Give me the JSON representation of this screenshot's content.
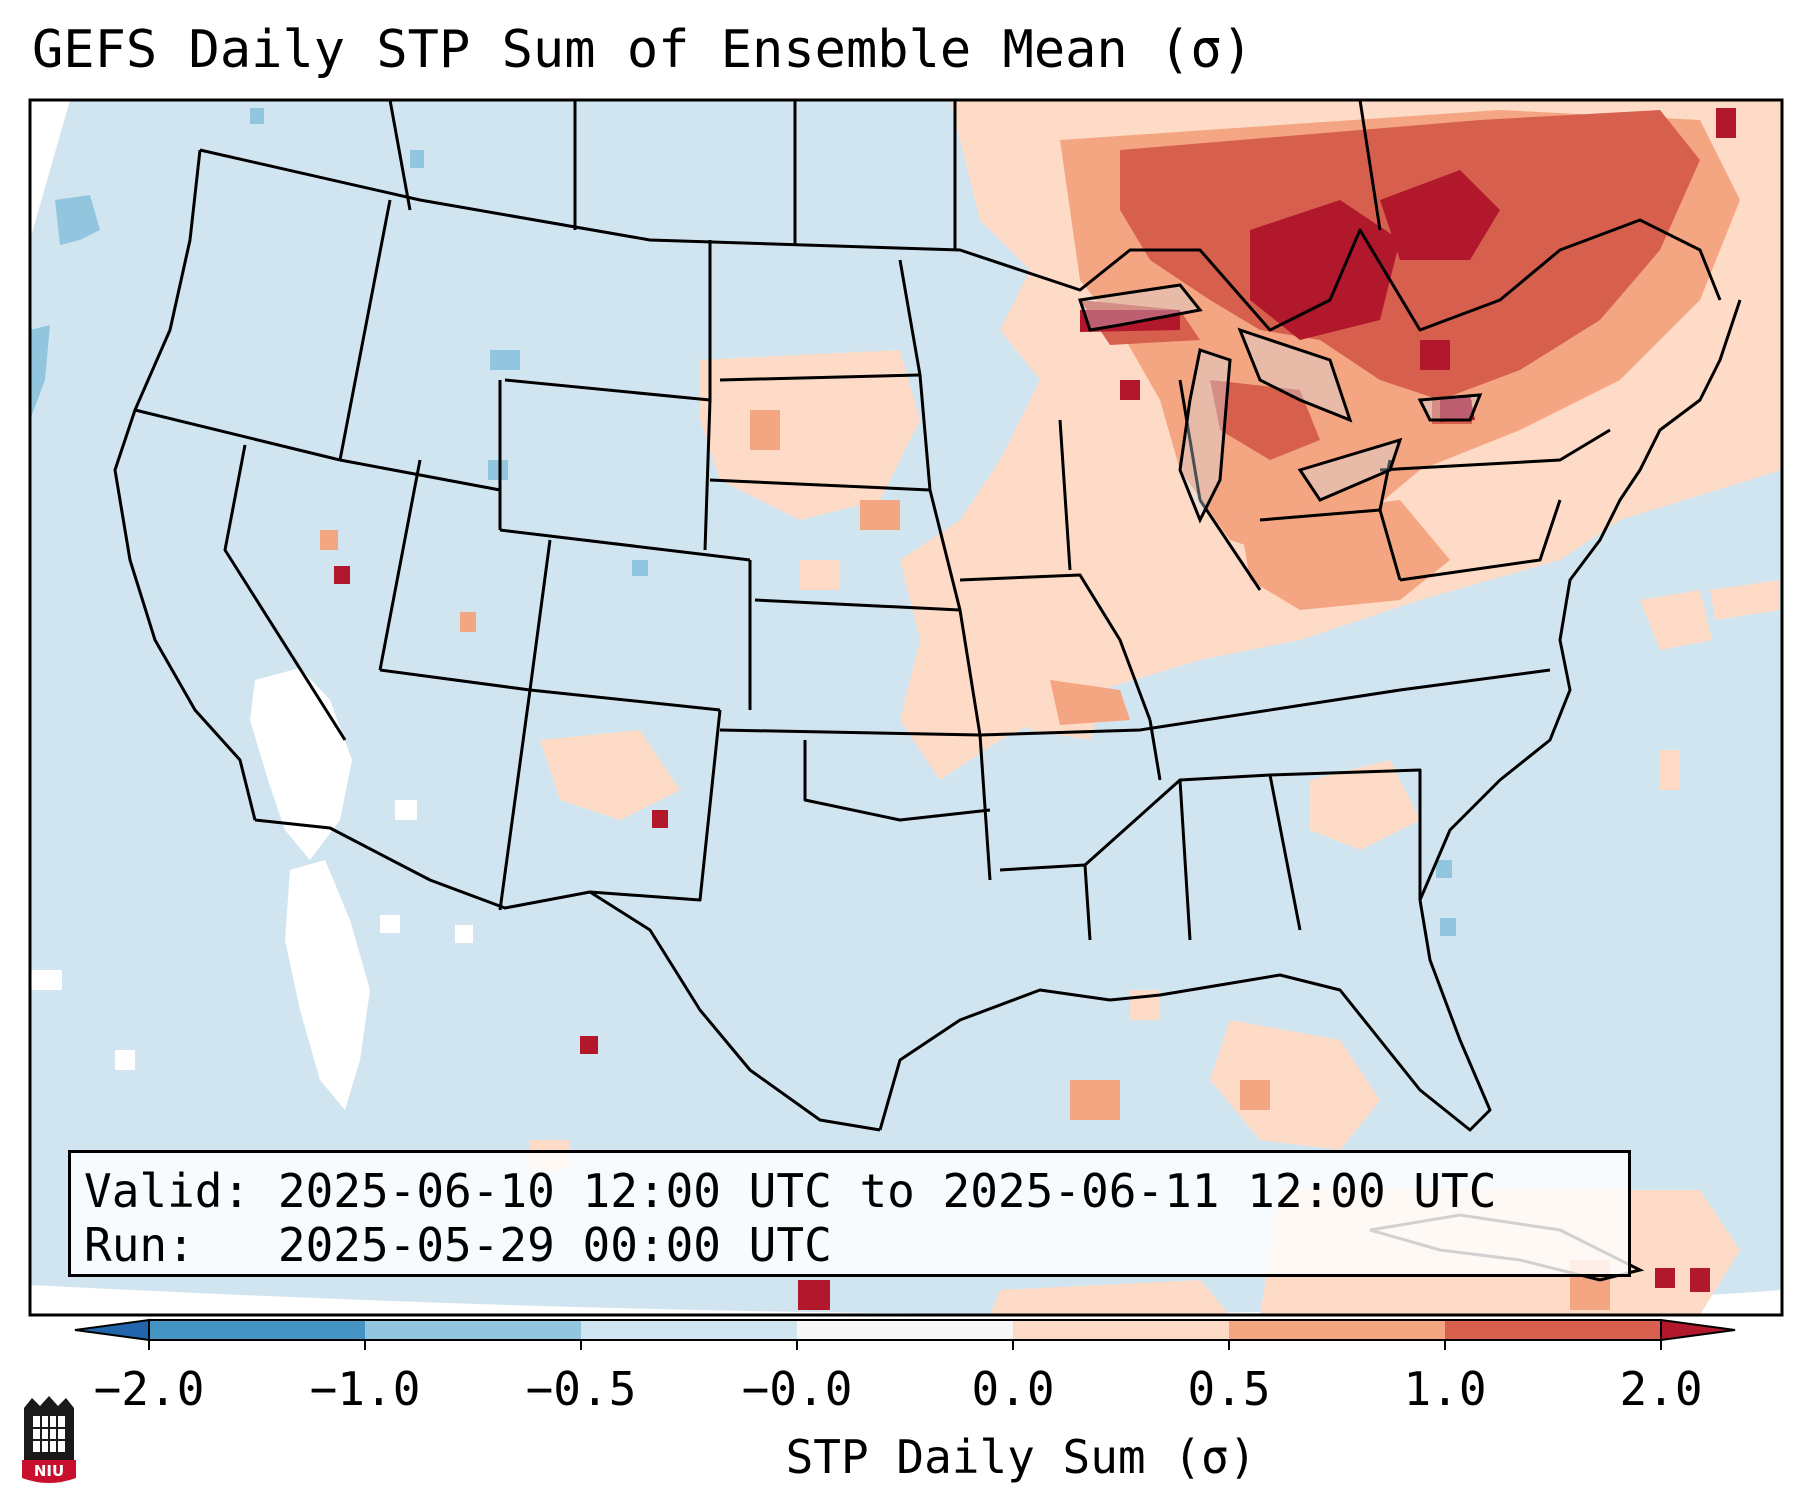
{
  "title": "GEFS Daily STP Sum of Ensemble Mean (σ)",
  "info_box": {
    "valid_label": "Valid:",
    "valid_value": "2025-06-10 12:00 UTC to 2025-06-11 12:00 UTC",
    "run_label": "Run:",
    "run_value": "2025-05-29 00:00 UTC"
  },
  "colorbar": {
    "label": "STP Daily Sum (σ)",
    "ticks": [
      "−2.0",
      "−1.0",
      "−0.5",
      "−0.0",
      "0.0",
      "0.5",
      "1.0",
      "2.0"
    ],
    "bins": [
      {
        "range": "< -2.0",
        "color": "#2166ac"
      },
      {
        "range": "-2.0 to -1.0",
        "color": "#4393c3"
      },
      {
        "range": "-1.0 to -0.5",
        "color": "#92c5de"
      },
      {
        "range": "-0.5 to -0.0",
        "color": "#d1e5f0"
      },
      {
        "range": "-0.0 to 0.0",
        "color": "#f7f7f7"
      },
      {
        "range": "0.0 to 0.5",
        "color": "#fddbc7"
      },
      {
        "range": "0.5 to 1.0",
        "color": "#f4a582"
      },
      {
        "range": "1.0 to 2.0",
        "color": "#d6604d"
      },
      {
        "range": "> 2.0",
        "color": "#b2182b"
      }
    ]
  },
  "map": {
    "background_color": "#d1e5f0",
    "region": "Contiguous United States, southern Canada, northern Mexico",
    "highlights": [
      {
        "area": "Ontario / Quebec / Great Lakes",
        "level": "1.0 to 2.0+"
      },
      {
        "area": "Upper Midwest / Northeast / Ohio Valley",
        "level": "0.0 to 1.0"
      },
      {
        "area": "Northern Plains",
        "level": "0.0 to 0.5"
      },
      {
        "area": "Southwest / Baja California",
        "level": "-0.0 to 0.0"
      }
    ]
  },
  "logo": {
    "text": "NIU"
  }
}
